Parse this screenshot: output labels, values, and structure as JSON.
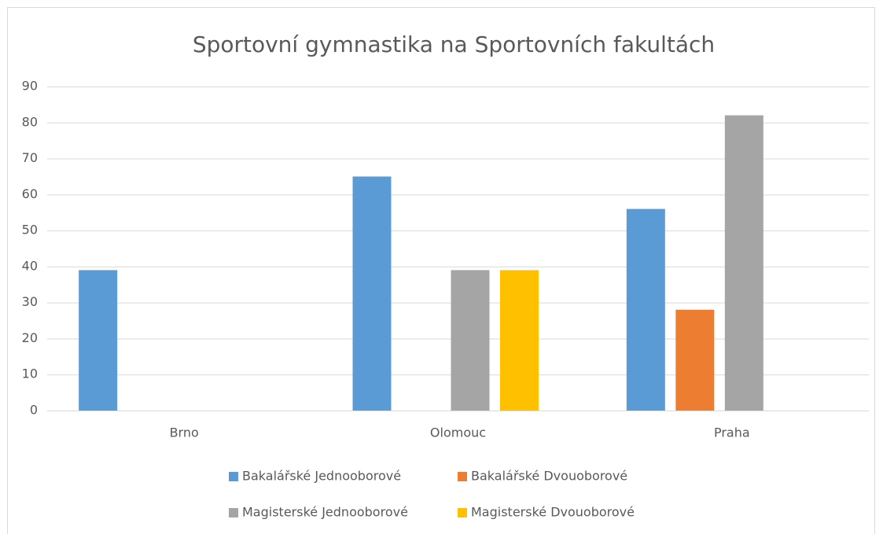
{
  "chart_data": {
    "type": "bar",
    "title": "Sportovní gymnastika na Sportovních fakultách",
    "categories": [
      "Brno",
      "Olomouc",
      "Praha"
    ],
    "series": [
      {
        "name": "Bakalářské Jednooborové",
        "color": "#5b9bd5",
        "values": [
          39,
          65,
          56
        ]
      },
      {
        "name": "Bakalářské Dvouoborové",
        "color": "#ed7d31",
        "values": [
          null,
          null,
          28
        ]
      },
      {
        "name": "Magisterské Jednooborové",
        "color": "#a5a5a5",
        "values": [
          null,
          39,
          82
        ]
      },
      {
        "name": "Magisterské Dvouoborové",
        "color": "#ffc000",
        "values": [
          null,
          39,
          null
        ]
      }
    ],
    "ylim": [
      0,
      90
    ],
    "yticks": [
      0,
      10,
      20,
      30,
      40,
      50,
      60,
      70,
      80,
      90
    ],
    "grid": true,
    "legend": "bottom"
  }
}
